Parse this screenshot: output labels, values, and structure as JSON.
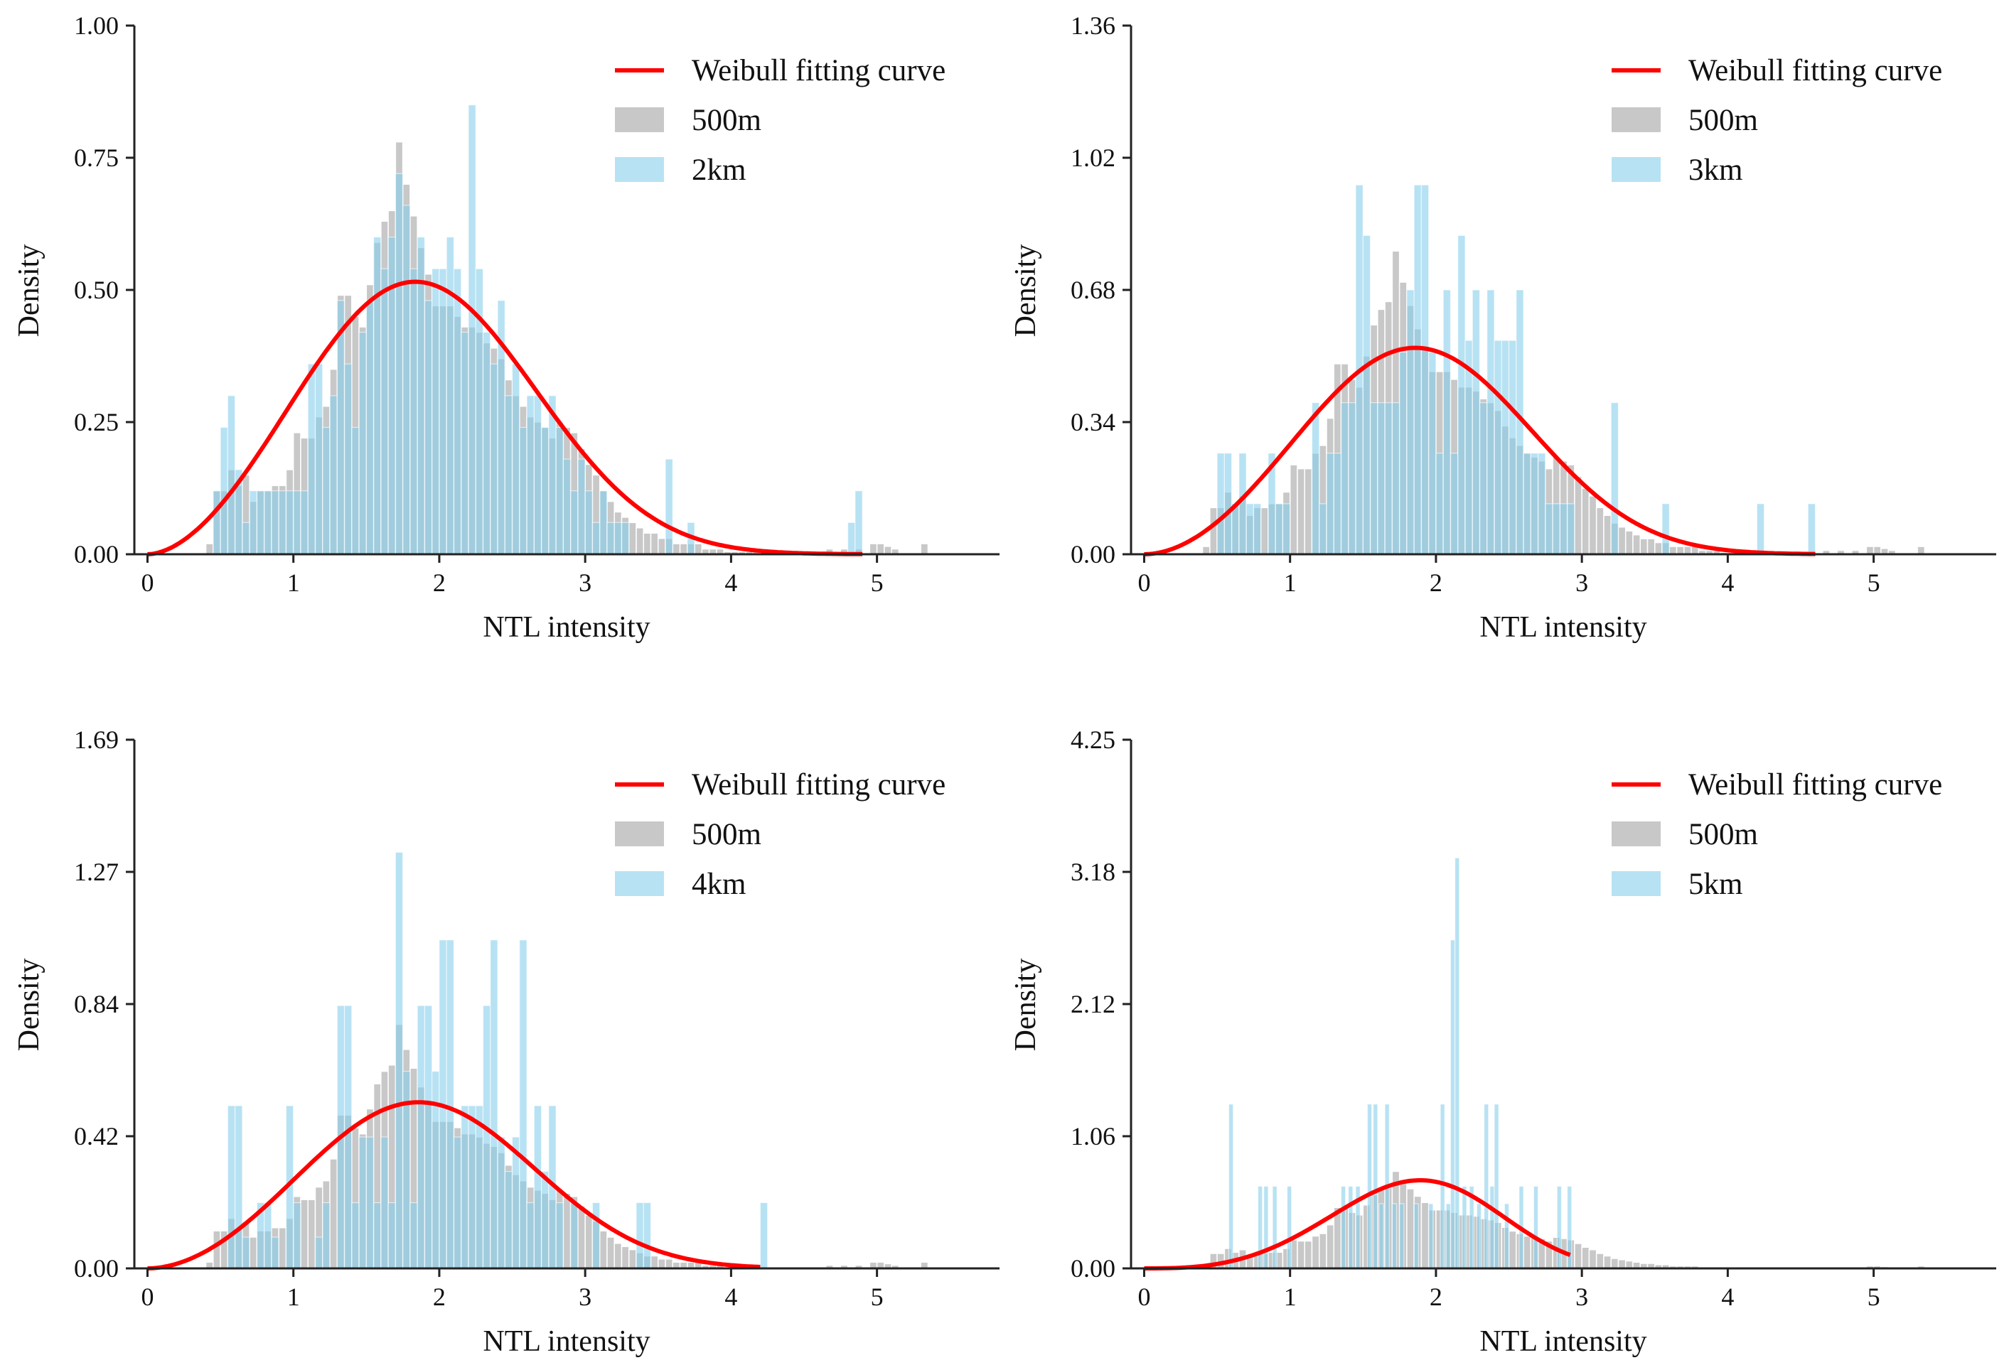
{
  "colors": {
    "curve": "#ff0000",
    "gray": "#c8c8c8",
    "blue": "#87ceeb",
    "axis": "#222222"
  },
  "gray_500m": {
    "x_start": 0.4,
    "bin_width": 0.05,
    "values": [
      0.02,
      0.12,
      0.12,
      0.16,
      0.13,
      0.15,
      0.1,
      0.12,
      0.12,
      0.13,
      0.13,
      0.16,
      0.23,
      0.22,
      0.22,
      0.26,
      0.28,
      0.35,
      0.49,
      0.49,
      0.45,
      0.43,
      0.51,
      0.59,
      0.63,
      0.65,
      0.78,
      0.7,
      0.64,
      0.58,
      0.53,
      0.47,
      0.47,
      0.47,
      0.45,
      0.43,
      0.43,
      0.42,
      0.4,
      0.39,
      0.37,
      0.33,
      0.3,
      0.28,
      0.26,
      0.25,
      0.24,
      0.22,
      0.25,
      0.24,
      0.23,
      0.2,
      0.17,
      0.15,
      0.12,
      0.1,
      0.08,
      0.07,
      0.06,
      0.05,
      0.04,
      0.04,
      0.03,
      0.03,
      0.02,
      0.02,
      0.02,
      0.02,
      0.01,
      0.01,
      0.01,
      0.005,
      0.005,
      0.005,
      0.005,
      0.005,
      0,
      0,
      0,
      0,
      0,
      0,
      0,
      0,
      0,
      0.01,
      0,
      0.01,
      0,
      0.01,
      0,
      0.02,
      0.02,
      0.015,
      0.01,
      0,
      0,
      0,
      0.02
    ]
  },
  "chart_data": [
    {
      "type": "bar",
      "title": "",
      "xlabel": "NTL intensity",
      "ylabel": "Density",
      "xlim": [
        -0.09,
        5.84
      ],
      "ylim": [
        0,
        1.0
      ],
      "xticks": [
        "0",
        "1",
        "2",
        "3",
        "4",
        "5"
      ],
      "yticks": [
        "0.00",
        "0.25",
        "0.50",
        "0.75",
        "1.00"
      ],
      "legend": {
        "position": "top-right",
        "entries": [
          "Weibull fitting curve",
          "500m",
          "2km"
        ]
      },
      "weibull": {
        "shape": 2.8,
        "scale": 2.15,
        "x_max": 4.9
      },
      "blue_bin_width": 0.05,
      "blue_2km": [
        [
          0.45,
          0.12
        ],
        [
          0.5,
          0.24
        ],
        [
          0.55,
          0.3
        ],
        [
          0.6,
          0.16
        ],
        [
          0.65,
          0.06
        ],
        [
          0.7,
          0.12
        ],
        [
          0.75,
          0.12
        ],
        [
          0.8,
          0.12
        ],
        [
          0.85,
          0.12
        ],
        [
          0.9,
          0.12
        ],
        [
          0.95,
          0.12
        ],
        [
          1.0,
          0.12
        ],
        [
          1.05,
          0.12
        ],
        [
          1.1,
          0.36
        ],
        [
          1.15,
          0.36
        ],
        [
          1.2,
          0.24
        ],
        [
          1.25,
          0.3
        ],
        [
          1.3,
          0.48
        ],
        [
          1.35,
          0.36
        ],
        [
          1.4,
          0.24
        ],
        [
          1.45,
          0.42
        ],
        [
          1.5,
          0.48
        ],
        [
          1.55,
          0.6
        ],
        [
          1.6,
          0.54
        ],
        [
          1.65,
          0.6
        ],
        [
          1.7,
          0.72
        ],
        [
          1.75,
          0.66
        ],
        [
          1.8,
          0.54
        ],
        [
          1.85,
          0.6
        ],
        [
          1.9,
          0.48
        ],
        [
          1.95,
          0.54
        ],
        [
          2.0,
          0.54
        ],
        [
          2.05,
          0.6
        ],
        [
          2.1,
          0.54
        ],
        [
          2.15,
          0.42
        ],
        [
          2.2,
          0.85
        ],
        [
          2.25,
          0.54
        ],
        [
          2.3,
          0.42
        ],
        [
          2.35,
          0.36
        ],
        [
          2.4,
          0.48
        ],
        [
          2.45,
          0.3
        ],
        [
          2.5,
          0.36
        ],
        [
          2.55,
          0.24
        ],
        [
          2.6,
          0.3
        ],
        [
          2.65,
          0.3
        ],
        [
          2.7,
          0.24
        ],
        [
          2.75,
          0.3
        ],
        [
          2.8,
          0.24
        ],
        [
          2.85,
          0.18
        ],
        [
          2.9,
          0.12
        ],
        [
          2.95,
          0.18
        ],
        [
          3.0,
          0.12
        ],
        [
          3.05,
          0.06
        ],
        [
          3.1,
          0.12
        ],
        [
          3.15,
          0.06
        ],
        [
          3.2,
          0.06
        ],
        [
          3.25,
          0.06
        ],
        [
          3.55,
          0.18
        ],
        [
          3.7,
          0.06
        ],
        [
          4.8,
          0.06
        ],
        [
          4.85,
          0.12
        ]
      ]
    },
    {
      "type": "bar",
      "title": "",
      "xlabel": "NTL intensity",
      "ylabel": "Density",
      "xlim": [
        -0.09,
        5.84
      ],
      "ylim": [
        0,
        1.36
      ],
      "xticks": [
        "0",
        "1",
        "2",
        "3",
        "4",
        "5"
      ],
      "yticks": [
        "0.00",
        "0.34",
        "0.68",
        "1.02",
        "1.36"
      ],
      "legend": {
        "position": "top-right",
        "entries": [
          "Weibull fitting curve",
          "500m",
          "3km"
        ]
      },
      "weibull": {
        "shape": 2.9,
        "scale": 2.15,
        "x_max": 4.6
      },
      "blue_bin_width": 0.05,
      "blue_3km": [
        [
          0.5,
          0.26
        ],
        [
          0.55,
          0.26
        ],
        [
          0.6,
          0.13
        ],
        [
          0.65,
          0.26
        ],
        [
          0.7,
          0.13
        ],
        [
          0.75,
          0.13
        ],
        [
          0.85,
          0.26
        ],
        [
          0.9,
          0.13
        ],
        [
          0.95,
          0.13
        ],
        [
          1.15,
          0.39
        ],
        [
          1.2,
          0.13
        ],
        [
          1.25,
          0.26
        ],
        [
          1.3,
          0.26
        ],
        [
          1.35,
          0.39
        ],
        [
          1.4,
          0.39
        ],
        [
          1.45,
          0.95
        ],
        [
          1.5,
          0.82
        ],
        [
          1.55,
          0.39
        ],
        [
          1.6,
          0.39
        ],
        [
          1.65,
          0.39
        ],
        [
          1.7,
          0.39
        ],
        [
          1.75,
          0.52
        ],
        [
          1.8,
          0.68
        ],
        [
          1.85,
          0.95
        ],
        [
          1.9,
          0.95
        ],
        [
          1.95,
          0.52
        ],
        [
          2.0,
          0.26
        ],
        [
          2.05,
          0.68
        ],
        [
          2.1,
          0.26
        ],
        [
          2.15,
          0.82
        ],
        [
          2.2,
          0.55
        ],
        [
          2.25,
          0.68
        ],
        [
          2.3,
          0.39
        ],
        [
          2.35,
          0.68
        ],
        [
          2.4,
          0.55
        ],
        [
          2.45,
          0.55
        ],
        [
          2.5,
          0.55
        ],
        [
          2.55,
          0.68
        ],
        [
          2.6,
          0.26
        ],
        [
          2.65,
          0.26
        ],
        [
          2.7,
          0.26
        ],
        [
          2.75,
          0.13
        ],
        [
          2.8,
          0.13
        ],
        [
          2.85,
          0.13
        ],
        [
          2.9,
          0.13
        ],
        [
          3.2,
          0.39
        ],
        [
          3.55,
          0.13
        ],
        [
          4.2,
          0.13
        ],
        [
          4.55,
          0.13
        ]
      ]
    },
    {
      "type": "bar",
      "title": "",
      "xlabel": "NTL intensity",
      "ylabel": "Density",
      "xlim": [
        -0.09,
        5.84
      ],
      "ylim": [
        0,
        1.69
      ],
      "xticks": [
        "0",
        "1",
        "2",
        "3",
        "4",
        "5"
      ],
      "yticks": [
        "0.00",
        "0.42",
        "0.84",
        "1.27",
        "1.69"
      ],
      "legend": {
        "position": "top-right",
        "entries": [
          "Weibull fitting curve",
          "500m",
          "4km"
        ]
      },
      "weibull": {
        "shape": 2.9,
        "scale": 2.15,
        "x_max": 4.2
      },
      "blue_bin_width": 0.05,
      "blue_4km": [
        [
          0.55,
          0.52
        ],
        [
          0.6,
          0.52
        ],
        [
          0.65,
          0.1
        ],
        [
          0.75,
          0.21
        ],
        [
          0.8,
          0.21
        ],
        [
          0.85,
          0.1
        ],
        [
          0.95,
          0.52
        ],
        [
          1.0,
          0.21
        ],
        [
          1.15,
          0.1
        ],
        [
          1.2,
          0.21
        ],
        [
          1.3,
          0.84
        ],
        [
          1.35,
          0.84
        ],
        [
          1.4,
          0.21
        ],
        [
          1.45,
          0.42
        ],
        [
          1.5,
          0.42
        ],
        [
          1.55,
          0.21
        ],
        [
          1.6,
          0.42
        ],
        [
          1.65,
          0.21
        ],
        [
          1.7,
          1.33
        ],
        [
          1.75,
          0.63
        ],
        [
          1.8,
          0.21
        ],
        [
          1.85,
          0.84
        ],
        [
          1.9,
          0.84
        ],
        [
          1.95,
          0.63
        ],
        [
          2.0,
          1.05
        ],
        [
          2.05,
          1.05
        ],
        [
          2.1,
          0.42
        ],
        [
          2.15,
          0.52
        ],
        [
          2.2,
          0.52
        ],
        [
          2.25,
          0.52
        ],
        [
          2.3,
          0.84
        ],
        [
          2.35,
          1.05
        ],
        [
          2.4,
          0.42
        ],
        [
          2.45,
          0.31
        ],
        [
          2.5,
          0.42
        ],
        [
          2.55,
          1.05
        ],
        [
          2.6,
          0.21
        ],
        [
          2.65,
          0.52
        ],
        [
          2.7,
          0.31
        ],
        [
          2.75,
          0.52
        ],
        [
          2.8,
          0.21
        ],
        [
          2.9,
          0.21
        ],
        [
          3.05,
          0.21
        ],
        [
          3.35,
          0.21
        ],
        [
          3.4,
          0.21
        ],
        [
          4.2,
          0.21
        ]
      ]
    },
    {
      "type": "bar",
      "title": "",
      "xlabel": "NTL intensity",
      "ylabel": "Density",
      "xlim": [
        -0.09,
        5.84
      ],
      "ylim": [
        0,
        4.25
      ],
      "xticks": [
        "0",
        "1",
        "2",
        "3",
        "4",
        "5"
      ],
      "yticks": [
        "0.00",
        "1.06",
        "2.12",
        "3.18",
        "4.25"
      ],
      "legend": {
        "position": "top-right",
        "entries": [
          "Weibull fitting curve",
          "500m",
          "5km"
        ]
      },
      "weibull": {
        "shape": 3.8,
        "scale": 2.05,
        "x_max": 2.93
      },
      "blue_bin_width": 0.03,
      "blue_5km": [
        [
          0.58,
          1.32
        ],
        [
          0.78,
          0.66
        ],
        [
          0.82,
          0.66
        ],
        [
          0.88,
          0.66
        ],
        [
          0.98,
          0.66
        ],
        [
          1.35,
          0.66
        ],
        [
          1.4,
          0.66
        ],
        [
          1.45,
          0.66
        ],
        [
          1.53,
          1.32
        ],
        [
          1.57,
          1.32
        ],
        [
          1.61,
          0.52
        ],
        [
          1.65,
          1.32
        ],
        [
          1.7,
          0.52
        ],
        [
          1.75,
          0.52
        ],
        [
          1.85,
          0.52
        ],
        [
          1.95,
          0.52
        ],
        [
          2.03,
          1.32
        ],
        [
          2.07,
          0.52
        ],
        [
          2.1,
          2.64
        ],
        [
          2.13,
          3.3
        ],
        [
          2.18,
          0.66
        ],
        [
          2.23,
          0.66
        ],
        [
          2.28,
          0.52
        ],
        [
          2.33,
          1.32
        ],
        [
          2.37,
          0.66
        ],
        [
          2.4,
          1.32
        ],
        [
          2.47,
          0.52
        ],
        [
          2.57,
          0.66
        ],
        [
          2.67,
          0.66
        ],
        [
          2.83,
          0.66
        ],
        [
          2.9,
          0.66
        ]
      ]
    }
  ]
}
